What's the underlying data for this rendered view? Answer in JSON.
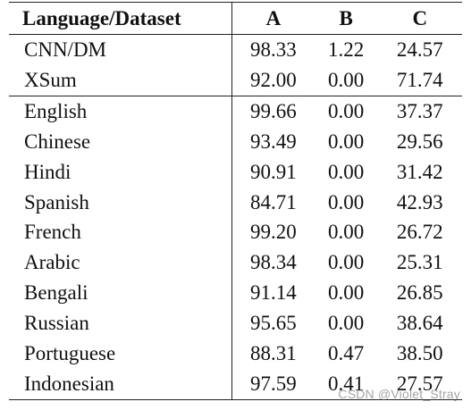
{
  "table": {
    "headers": [
      "Language/Dataset",
      "A",
      "B",
      "C"
    ],
    "groups": [
      {
        "rows": [
          [
            "CNN/DM",
            "98.33",
            "1.22",
            "24.57"
          ],
          [
            "XSum",
            "92.00",
            "0.00",
            "71.74"
          ]
        ]
      },
      {
        "rows": [
          [
            "English",
            "99.66",
            "0.00",
            "37.37"
          ],
          [
            "Chinese",
            "93.49",
            "0.00",
            "29.56"
          ],
          [
            "Hindi",
            "90.91",
            "0.00",
            "31.42"
          ],
          [
            "Spanish",
            "84.71",
            "0.00",
            "42.93"
          ],
          [
            "French",
            "99.20",
            "0.00",
            "26.72"
          ],
          [
            "Arabic",
            "98.34",
            "0.00",
            "25.31"
          ],
          [
            "Bengali",
            "91.14",
            "0.00",
            "26.85"
          ],
          [
            "Russian",
            "95.65",
            "0.00",
            "38.64"
          ],
          [
            "Portuguese",
            "88.31",
            "0.47",
            "38.50"
          ],
          [
            "Indonesian",
            "97.59",
            "0.41",
            "27.57"
          ]
        ]
      }
    ]
  },
  "watermark": "CSDN @Violet_Stray"
}
